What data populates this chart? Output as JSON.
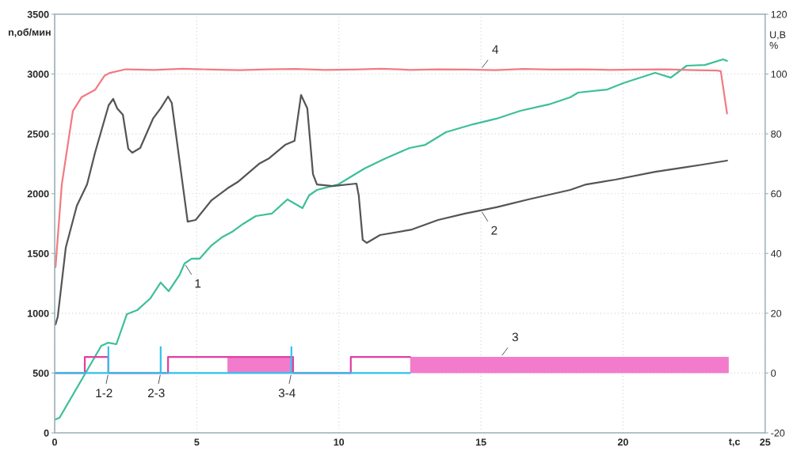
{
  "chart_data": {
    "type": "line",
    "xlabel": "t,c",
    "ylabel": "n,об/мин",
    "y2label": "U,B\n%",
    "xlim": [
      0,
      25
    ],
    "xticks": [
      0,
      5,
      10,
      15,
      20,
      25
    ],
    "ylim": [
      0,
      3500
    ],
    "yticks": [
      0,
      500,
      1000,
      1500,
      2000,
      2500,
      3000,
      3500
    ],
    "y2lim": [
      -20,
      120
    ],
    "y2ticks": [
      -20,
      0,
      20,
      40,
      60,
      80,
      100,
      120
    ],
    "grid": true,
    "legend": false,
    "series": [
      {
        "color": "#3dbf9a",
        "x": [
          0.03,
          0.17,
          1.06,
          1.64,
          1.89,
          2.17,
          2.54,
          2.9,
          3.37,
          3.73,
          4.01,
          4.4,
          4.57,
          4.82,
          5.1,
          5.52,
          5.88,
          6.24,
          6.63,
          7.08,
          7.64,
          8.19,
          8.72,
          8.95,
          9.23,
          9.98,
          10.9,
          11.65,
          12.49,
          13.04,
          13.77,
          14.72,
          15.55,
          16.39,
          17.39,
          18.14,
          18.42,
          19.45,
          20.01,
          21.13,
          21.68,
          22.24,
          22.88,
          23.52,
          23.66
        ],
        "values": [
          112,
          126,
          490,
          728,
          754,
          741,
          992,
          1025,
          1125,
          1257,
          1184,
          1323,
          1416,
          1456,
          1456,
          1568,
          1634,
          1680,
          1747,
          1813,
          1833,
          1952,
          1879,
          1985,
          2031,
          2077,
          2210,
          2296,
          2382,
          2408,
          2514,
          2580,
          2627,
          2693,
          2746,
          2805,
          2845,
          2871,
          2924,
          3010,
          2970,
          3070,
          3076,
          3123,
          3110
        ]
      },
      {
        "color": "#555555",
        "x": [
          0.03,
          0.11,
          0.39,
          0.78,
          1.14,
          1.42,
          1.9,
          2.06,
          2.2,
          2.4,
          2.59,
          2.73,
          3.01,
          3.46,
          3.73,
          3.99,
          4.12,
          4.68,
          4.96,
          5.52,
          6.08,
          6.44,
          7.19,
          7.55,
          8.11,
          8.44,
          8.67,
          8.89,
          9.09,
          9.23,
          9.78,
          10.62,
          10.7,
          10.84,
          10.98,
          11.45,
          12.57,
          13.49,
          14.44,
          15.55,
          16.67,
          18.14,
          18.7,
          19.73,
          21.13,
          22.05,
          22.8,
          23.66
        ],
        "values": [
          906,
          973,
          1548,
          1899,
          2077,
          2342,
          2739,
          2792,
          2713,
          2660,
          2375,
          2342,
          2382,
          2627,
          2713,
          2812,
          2759,
          1766,
          1780,
          1945,
          2044,
          2097,
          2249,
          2296,
          2408,
          2441,
          2825,
          2713,
          2163,
          2077,
          2064,
          2084,
          1985,
          1614,
          1588,
          1654,
          1700,
          1780,
          1833,
          1886,
          1952,
          2031,
          2077,
          2117,
          2183,
          2216,
          2243,
          2276
        ]
      },
      {
        "color": "#e03fa2",
        "axis": "y2",
        "x": [
          0,
          1.06,
          1.06,
          1.89,
          1.89,
          3.99,
          3.99,
          6.08,
          8.39,
          8.39,
          10.42,
          10.42,
          12.51
        ],
        "values": [
          0,
          0,
          5.4,
          5.4,
          0,
          0,
          5.4,
          5.4,
          5.4,
          0,
          0,
          5.4,
          5.4
        ]
      },
      {
        "type": "area",
        "color": "#f27ccb",
        "axis": "y2",
        "x": [
          6.08,
          8.39,
          10.0,
          12.51,
          23.72
        ],
        "values": [
          5.4,
          5.4,
          null,
          5.4,
          5.4
        ]
      },
      {
        "color": "#33c0f0",
        "axis": "y2",
        "x": [
          0,
          1.89,
          1.89,
          1.89,
          3.73,
          3.73,
          3.73,
          8.33,
          8.33,
          8.33,
          12.51
        ],
        "values": [
          0,
          0,
          8.7,
          0,
          0,
          8.7,
          0,
          0,
          8.7,
          0,
          0
        ]
      },
      {
        "color": "#f27b82",
        "axis": "y2",
        "x": [
          0.03,
          0.25,
          0.64,
          0.95,
          1.42,
          1.76,
          1.92,
          2.5,
          3.5,
          4.5,
          5.5,
          6.5,
          7.5,
          8.5,
          9.5,
          10.5,
          11.5,
          12.5,
          13.5,
          14.5,
          15.5,
          16.5,
          17.5,
          18.5,
          19.5,
          20.5,
          21.5,
          22.5,
          23.3,
          23.44,
          23.66
        ],
        "values": [
          35.4,
          63,
          87.6,
          92.3,
          94.7,
          99.5,
          100.3,
          101.6,
          101.4,
          101.8,
          101.5,
          101.3,
          101.6,
          101.7,
          101.4,
          101.5,
          101.8,
          101.4,
          101.6,
          101.5,
          101.3,
          101.7,
          101.5,
          101.6,
          101.4,
          101.5,
          101.6,
          101.3,
          101.2,
          101,
          86.8
        ]
      }
    ],
    "annotations": [
      {
        "text": "1",
        "x": 4.57,
        "y": 1416
      },
      {
        "text": "2",
        "x": 15.0,
        "y": 1860
      },
      {
        "text": "3",
        "x": 15.7,
        "y": 635
      },
      {
        "text": "4",
        "x": 15.0,
        "y": 3040
      },
      {
        "text": "1-2",
        "x": 1.89,
        "y": 500
      },
      {
        "text": "2-3",
        "x": 3.73,
        "y": 500
      },
      {
        "text": "3-4",
        "x": 8.33,
        "y": 500
      }
    ]
  }
}
